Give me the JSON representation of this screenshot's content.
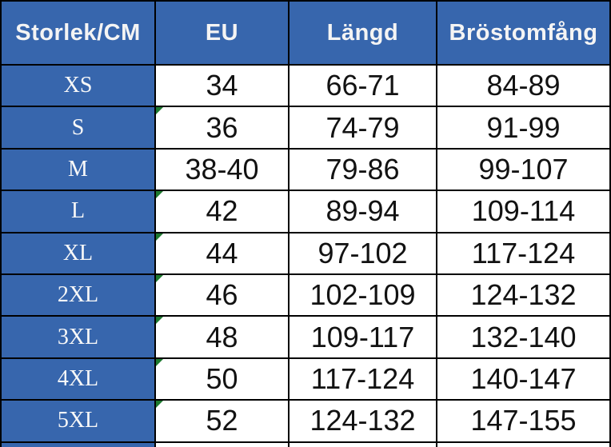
{
  "colors": {
    "header_blue": "#3766ad",
    "grid_border": "#000000",
    "error_indicator_green": "#1e7a30",
    "header_text": "#f4f4f4",
    "cell_text": "#121212"
  },
  "table": {
    "headers": [
      "Storlek/CM",
      "EU",
      "Längd",
      "Bröstomfång"
    ],
    "rows": [
      {
        "size": "XS",
        "eu": "34",
        "langd": "66-71",
        "brostomfang": "84-89",
        "eu_indicator": false
      },
      {
        "size": "S",
        "eu": "36",
        "langd": "74-79",
        "brostomfang": "91-99",
        "eu_indicator": true
      },
      {
        "size": "M",
        "eu": "38-40",
        "langd": "79-86",
        "brostomfang": "99-107",
        "eu_indicator": false
      },
      {
        "size": "L",
        "eu": "42",
        "langd": "89-94",
        "brostomfang": "109-114",
        "eu_indicator": true
      },
      {
        "size": "XL",
        "eu": "44",
        "langd": "97-102",
        "brostomfang": "117-124",
        "eu_indicator": true
      },
      {
        "size": "2XL",
        "eu": "46",
        "langd": "102-109",
        "brostomfang": "124-132",
        "eu_indicator": true
      },
      {
        "size": "3XL",
        "eu": "48",
        "langd": "109-117",
        "brostomfang": "132-140",
        "eu_indicator": true
      },
      {
        "size": "4XL",
        "eu": "50",
        "langd": "117-124",
        "brostomfang": "140-147",
        "eu_indicator": true
      },
      {
        "size": "5XL",
        "eu": "52",
        "langd": "124-132",
        "brostomfang": "147-155",
        "eu_indicator": true
      }
    ]
  },
  "chart_data": {
    "type": "table",
    "columns": [
      "Storlek/CM",
      "EU",
      "Längd",
      "Bröstomfång"
    ],
    "rows": [
      [
        "XS",
        "34",
        "66-71",
        "84-89"
      ],
      [
        "S",
        "36",
        "74-79",
        "91-99"
      ],
      [
        "M",
        "38-40",
        "79-86",
        "99-107"
      ],
      [
        "L",
        "42",
        "89-94",
        "109-114"
      ],
      [
        "XL",
        "44",
        "97-102",
        "117-124"
      ],
      [
        "2XL",
        "46",
        "102-109",
        "124-132"
      ],
      [
        "3XL",
        "48",
        "109-117",
        "132-140"
      ],
      [
        "4XL",
        "50",
        "117-124",
        "140-147"
      ],
      [
        "5XL",
        "52",
        "124-132",
        "147-155"
      ]
    ]
  }
}
